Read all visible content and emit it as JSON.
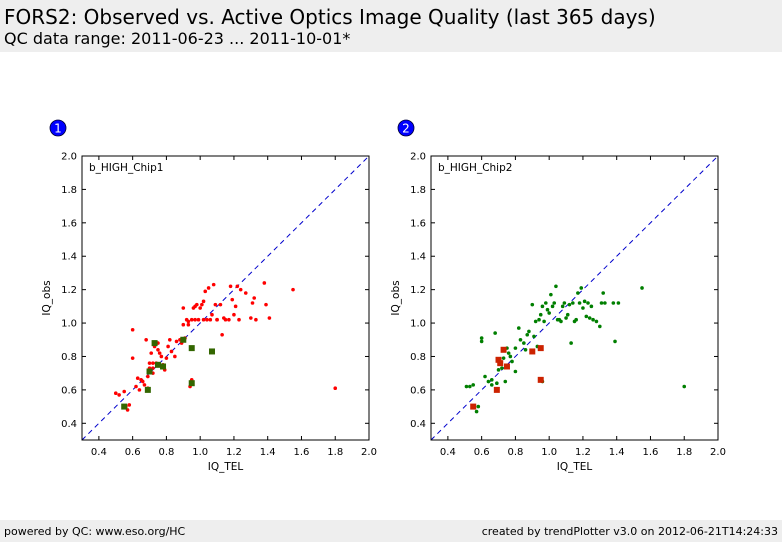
{
  "header": {
    "title": "FORS2: Observed vs. Active Optics Image Quality (last 365 days)",
    "subtitle": "QC data range: 2011-06-23 ... 2011-10-01*"
  },
  "footer": {
    "left": "powered by QC: www.eso.org/HC",
    "right": "created by trendPlotter v3.0 on 2012-06-21T14:24:33"
  },
  "colors": {
    "red": "#ff0000",
    "green": "#007f00",
    "square_red": "#cc2200",
    "square_green": "#336600",
    "diagonal": "#0000cc",
    "badge": "#0000ff"
  },
  "chart_data": [
    {
      "type": "scatter",
      "panel_number": "1",
      "label": "b_HIGH_Chip1",
      "xlabel": "IQ_TEL",
      "ylabel": "IQ_obs",
      "xlim": [
        0.3,
        2.0
      ],
      "ylim": [
        0.3,
        2.0
      ],
      "xticks": [
        "0.4",
        "0.6",
        "0.8",
        "1.0",
        "1.2",
        "1.4",
        "1.6",
        "1.8",
        "2.0"
      ],
      "yticks": [
        "0.4",
        "0.6",
        "0.8",
        "1.0",
        "1.2",
        "1.4",
        "1.6",
        "1.8",
        "2.0"
      ],
      "grid": false,
      "reference_line": "y = x (dashed)",
      "points_color": "red",
      "points": [
        [
          0.5,
          0.58
        ],
        [
          0.52,
          0.57
        ],
        [
          0.55,
          0.59
        ],
        [
          0.56,
          0.5
        ],
        [
          0.57,
          0.48
        ],
        [
          0.58,
          0.51
        ],
        [
          0.6,
          0.96
        ],
        [
          0.6,
          0.79
        ],
        [
          0.62,
          0.62
        ],
        [
          0.63,
          0.67
        ],
        [
          0.64,
          0.6
        ],
        [
          0.65,
          0.66
        ],
        [
          0.66,
          0.65
        ],
        [
          0.67,
          0.63
        ],
        [
          0.68,
          0.9
        ],
        [
          0.69,
          0.68
        ],
        [
          0.7,
          0.73
        ],
        [
          0.7,
          0.76
        ],
        [
          0.71,
          0.82
        ],
        [
          0.72,
          0.73
        ],
        [
          0.72,
          0.76
        ],
        [
          0.73,
          0.86
        ],
        [
          0.74,
          0.76
        ],
        [
          0.75,
          0.84
        ],
        [
          0.75,
          0.88
        ],
        [
          0.76,
          0.82
        ],
        [
          0.77,
          0.8
        ],
        [
          0.78,
          0.75
        ],
        [
          0.79,
          0.72
        ],
        [
          0.8,
          0.79
        ],
        [
          0.81,
          0.86
        ],
        [
          0.82,
          0.9
        ],
        [
          0.83,
          0.83
        ],
        [
          0.85,
          0.8
        ],
        [
          0.86,
          0.89
        ],
        [
          0.88,
          0.9
        ],
        [
          0.89,
          0.88
        ],
        [
          0.9,
          0.99
        ],
        [
          0.9,
          1.09
        ],
        [
          0.91,
          0.91
        ],
        [
          0.92,
          1.02
        ],
        [
          0.93,
          0.99
        ],
        [
          0.93,
          1.01
        ],
        [
          0.94,
          0.62
        ],
        [
          0.95,
          1.02
        ],
        [
          0.96,
          1.09
        ],
        [
          0.97,
          1.1
        ],
        [
          0.97,
          1.02
        ],
        [
          0.98,
          1.11
        ],
        [
          0.99,
          1.02
        ],
        [
          1.0,
          1.09
        ],
        [
          1.01,
          1.11
        ],
        [
          1.02,
          1.02
        ],
        [
          1.02,
          1.13
        ],
        [
          1.03,
          1.19
        ],
        [
          1.04,
          1.02
        ],
        [
          1.05,
          1.21
        ],
        [
          1.06,
          1.02
        ],
        [
          1.07,
          1.05
        ],
        [
          1.08,
          1.23
        ],
        [
          1.09,
          1.11
        ],
        [
          1.1,
          1.02
        ],
        [
          1.1,
          1.02
        ],
        [
          1.12,
          1.11
        ],
        [
          1.13,
          0.93
        ],
        [
          1.14,
          1.03
        ],
        [
          1.15,
          1.02
        ],
        [
          1.17,
          1.02
        ],
        [
          1.18,
          1.22
        ],
        [
          1.19,
          1.14
        ],
        [
          1.2,
          1.05
        ],
        [
          1.21,
          1.1
        ],
        [
          1.22,
          1.22
        ],
        [
          1.23,
          1.02
        ],
        [
          1.24,
          1.2
        ],
        [
          1.27,
          1.18
        ],
        [
          1.3,
          1.03
        ],
        [
          1.31,
          1.12
        ],
        [
          1.32,
          1.15
        ],
        [
          1.33,
          1.02
        ],
        [
          1.38,
          1.24
        ],
        [
          1.39,
          1.11
        ],
        [
          1.41,
          1.03
        ],
        [
          1.55,
          1.2
        ],
        [
          1.8,
          0.61
        ],
        [
          0.69,
          0.61
        ],
        [
          0.95,
          0.66
        ],
        [
          0.72,
          0.7
        ]
      ],
      "squares_color": "green",
      "squares": [
        [
          0.55,
          0.5
        ],
        [
          0.69,
          0.6
        ],
        [
          0.7,
          0.71
        ],
        [
          0.73,
          0.88
        ],
        [
          0.75,
          0.75
        ],
        [
          0.78,
          0.74
        ],
        [
          0.9,
          0.9
        ],
        [
          0.95,
          0.85
        ],
        [
          0.95,
          0.64
        ],
        [
          1.07,
          0.83
        ]
      ]
    },
    {
      "type": "scatter",
      "panel_number": "2",
      "label": "b_HIGH_Chip2",
      "xlabel": "IQ_TEL",
      "ylabel": "IQ_obs",
      "xlim": [
        0.3,
        2.0
      ],
      "ylim": [
        0.3,
        2.0
      ],
      "xticks": [
        "0.4",
        "0.6",
        "0.8",
        "1.0",
        "1.2",
        "1.4",
        "1.6",
        "1.8",
        "2.0"
      ],
      "yticks": [
        "0.4",
        "0.6",
        "0.8",
        "1.0",
        "1.2",
        "1.4",
        "1.6",
        "1.8",
        "2.0"
      ],
      "grid": false,
      "reference_line": "y = x (dashed)",
      "points_color": "green",
      "points": [
        [
          0.51,
          0.62
        ],
        [
          0.53,
          0.62
        ],
        [
          0.55,
          0.63
        ],
        [
          0.57,
          0.47
        ],
        [
          0.58,
          0.5
        ],
        [
          0.6,
          0.91
        ],
        [
          0.6,
          0.89
        ],
        [
          0.62,
          0.68
        ],
        [
          0.64,
          0.65
        ],
        [
          0.66,
          0.63
        ],
        [
          0.68,
          0.94
        ],
        [
          0.69,
          0.64
        ],
        [
          0.7,
          0.72
        ],
        [
          0.71,
          0.76
        ],
        [
          0.72,
          0.73
        ],
        [
          0.73,
          0.79
        ],
        [
          0.74,
          0.65
        ],
        [
          0.75,
          0.85
        ],
        [
          0.76,
          0.82
        ],
        [
          0.77,
          0.8
        ],
        [
          0.78,
          0.77
        ],
        [
          0.8,
          0.85
        ],
        [
          0.8,
          0.71
        ],
        [
          0.82,
          0.97
        ],
        [
          0.83,
          0.9
        ],
        [
          0.85,
          0.88
        ],
        [
          0.86,
          0.84
        ],
        [
          0.87,
          0.93
        ],
        [
          0.88,
          0.95
        ],
        [
          0.9,
          1.11
        ],
        [
          0.91,
          0.92
        ],
        [
          0.92,
          1.01
        ],
        [
          0.93,
          0.86
        ],
        [
          0.94,
          1.02
        ],
        [
          0.95,
          1.05
        ],
        [
          0.96,
          1.1
        ],
        [
          0.97,
          1.01
        ],
        [
          0.98,
          1.12
        ],
        [
          0.99,
          1.08
        ],
        [
          1.0,
          1.06
        ],
        [
          1.01,
          1.17
        ],
        [
          1.02,
          1.1
        ],
        [
          1.03,
          1.12
        ],
        [
          1.04,
          1.22
        ],
        [
          1.05,
          1.02
        ],
        [
          1.06,
          1.02
        ],
        [
          1.07,
          1.01
        ],
        [
          1.08,
          1.1
        ],
        [
          1.09,
          1.12
        ],
        [
          1.1,
          1.03
        ],
        [
          1.11,
          1.05
        ],
        [
          1.12,
          1.11
        ],
        [
          1.13,
          0.88
        ],
        [
          1.14,
          1.12
        ],
        [
          1.15,
          1.01
        ],
        [
          1.16,
          1.02
        ],
        [
          1.17,
          1.18
        ],
        [
          1.18,
          1.12
        ],
        [
          1.19,
          1.21
        ],
        [
          1.2,
          1.09
        ],
        [
          1.21,
          1.13
        ],
        [
          1.22,
          1.04
        ],
        [
          1.23,
          1.12
        ],
        [
          1.24,
          1.03
        ],
        [
          1.25,
          1.1
        ],
        [
          1.26,
          1.02
        ],
        [
          1.28,
          1.01
        ],
        [
          1.3,
          0.98
        ],
        [
          1.31,
          1.12
        ],
        [
          1.32,
          1.18
        ],
        [
          1.33,
          1.12
        ],
        [
          1.38,
          1.12
        ],
        [
          1.39,
          0.89
        ],
        [
          1.41,
          1.12
        ],
        [
          1.55,
          1.21
        ],
        [
          1.8,
          0.62
        ],
        [
          0.96,
          0.65
        ],
        [
          0.66,
          0.66
        ]
      ],
      "squares_color": "red",
      "squares": [
        [
          0.55,
          0.5
        ],
        [
          0.69,
          0.6
        ],
        [
          0.7,
          0.78
        ],
        [
          0.71,
          0.76
        ],
        [
          0.73,
          0.84
        ],
        [
          0.75,
          0.74
        ],
        [
          0.9,
          0.83
        ],
        [
          0.95,
          0.85
        ],
        [
          0.95,
          0.66
        ]
      ]
    }
  ]
}
